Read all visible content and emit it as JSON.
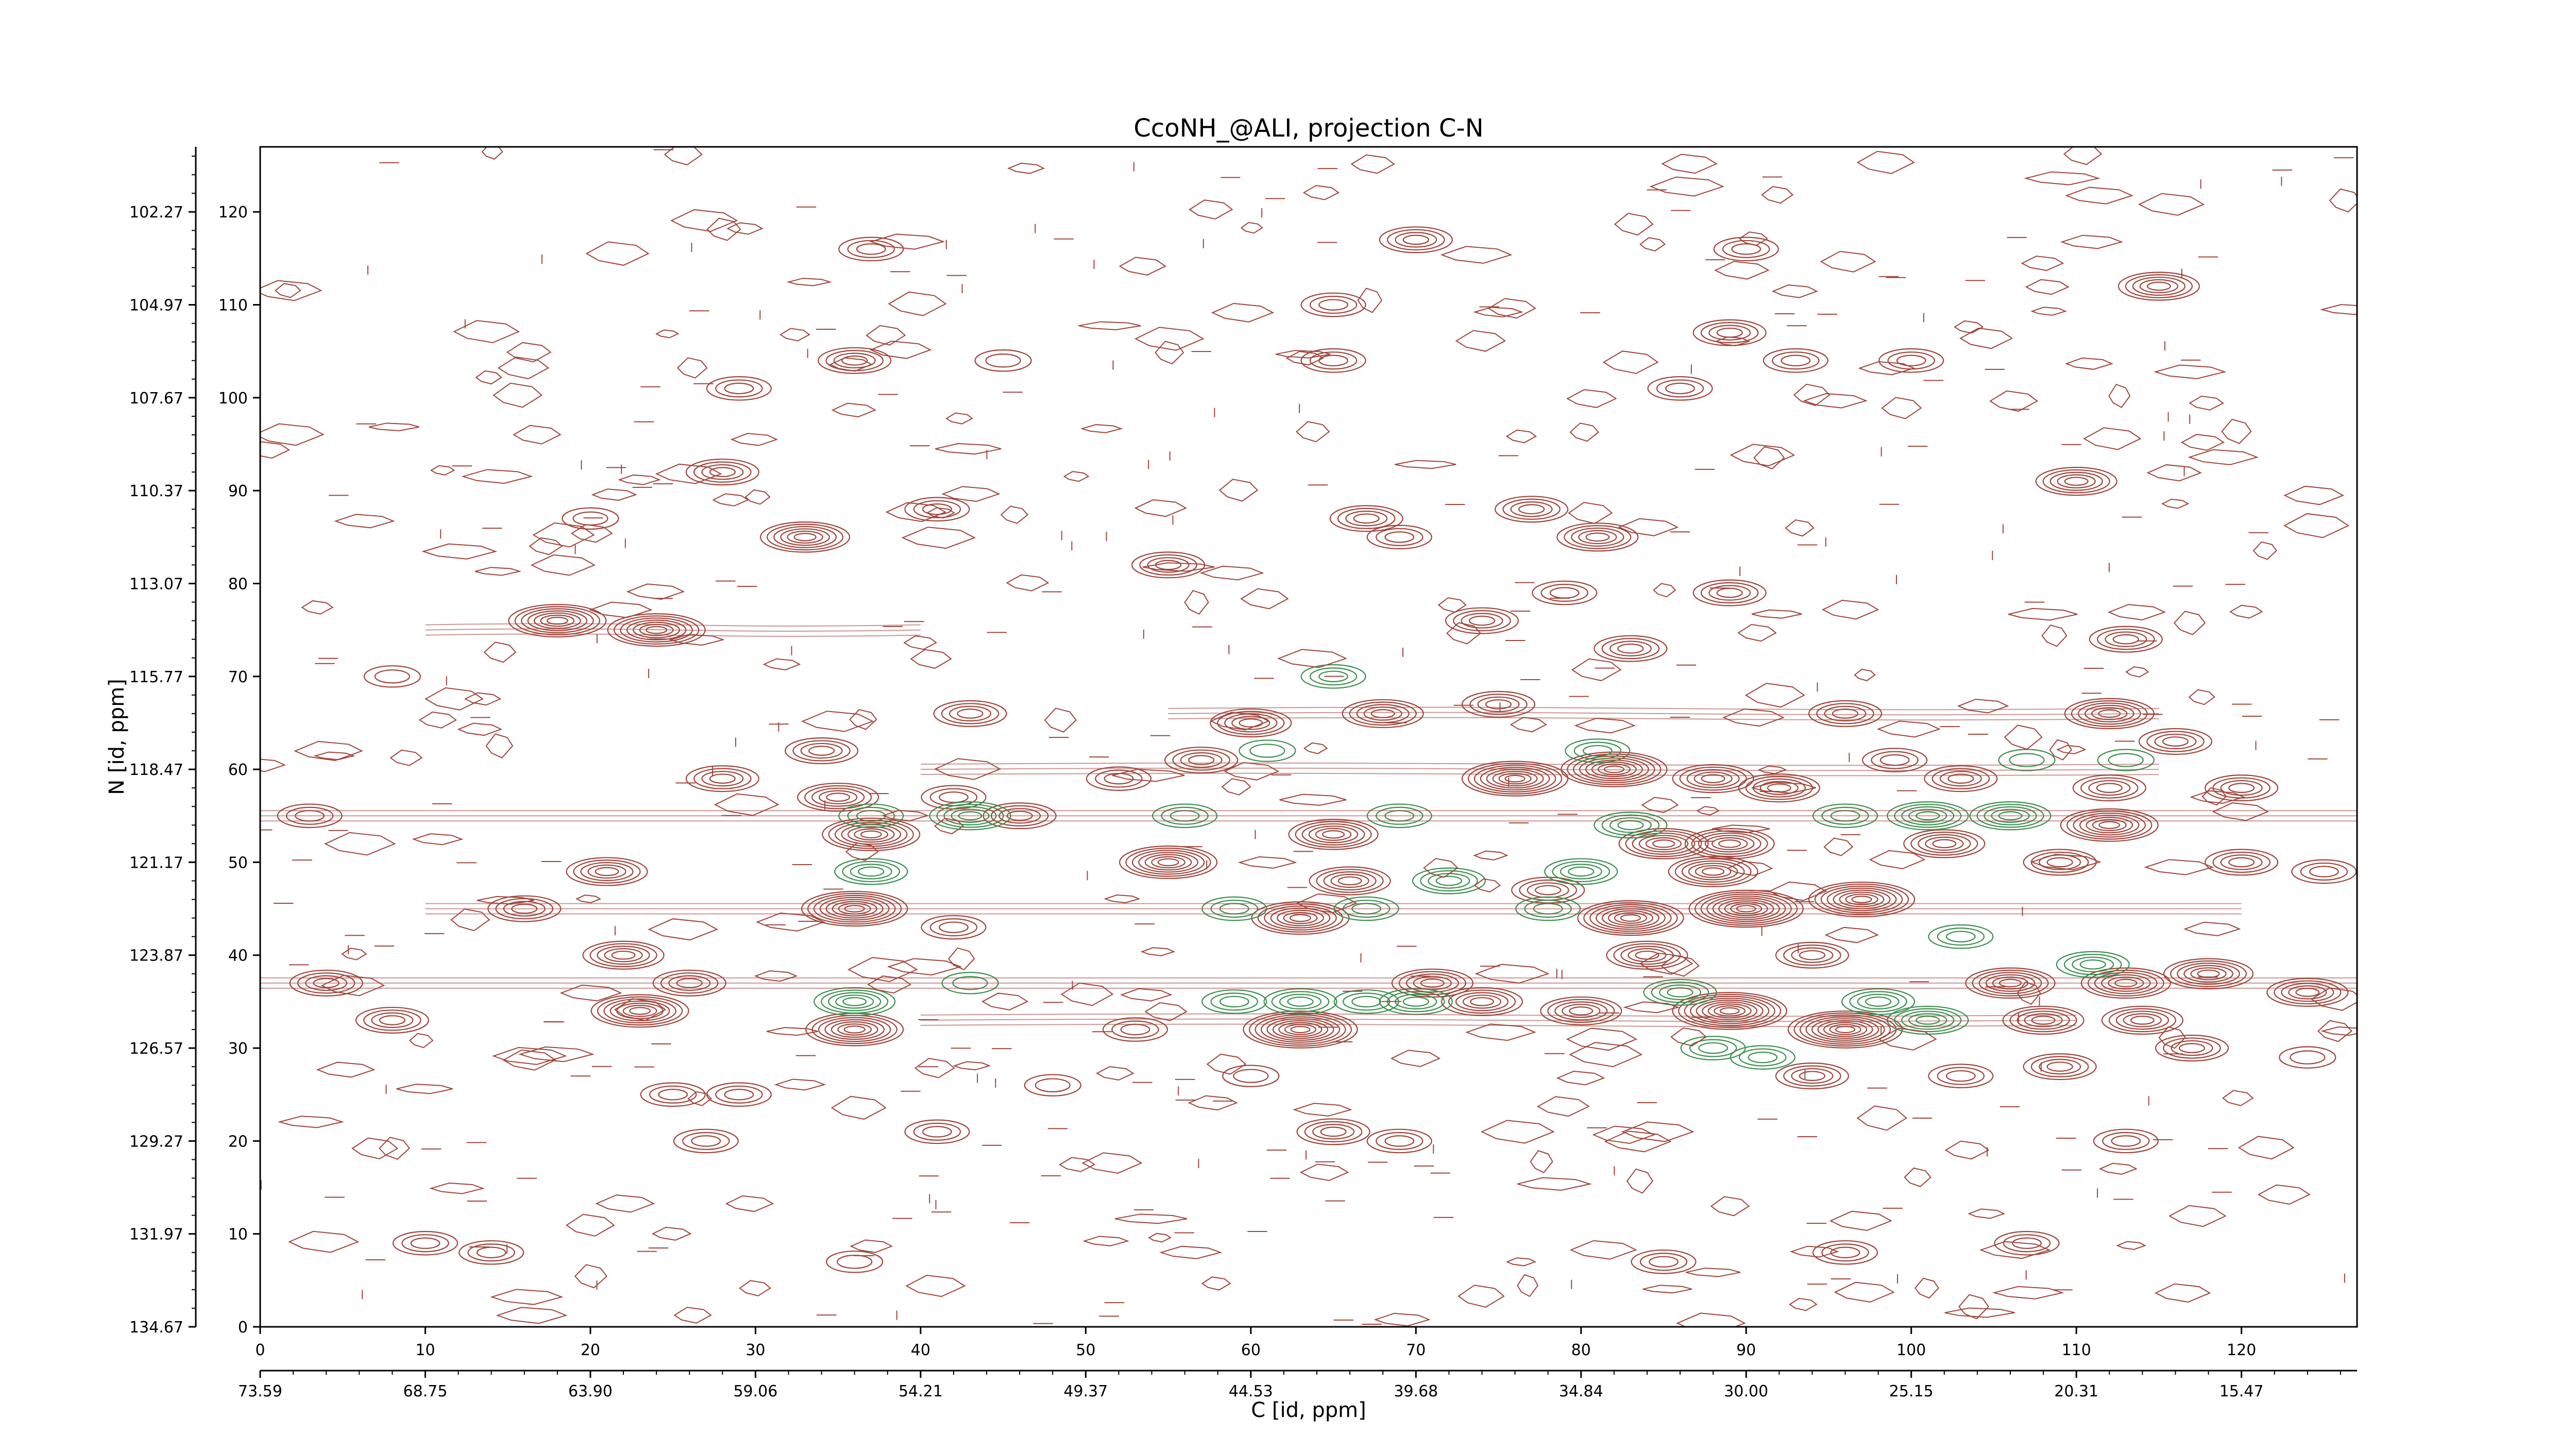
{
  "chart_data": {
    "type": "contour",
    "title": "CcoNH_@ALI, projection C-N",
    "xlabel": "C [id, ppm]",
    "ylabel": "N [id, ppm]",
    "xlim": [
      0,
      127
    ],
    "ylim": [
      0,
      127
    ],
    "x_ticks": [
      "0",
      "10",
      "20",
      "30",
      "40",
      "50",
      "60",
      "70",
      "80",
      "90",
      "100",
      "110",
      "120"
    ],
    "x_ppm_ticks": [
      "73.59",
      "68.75",
      "63.90",
      "59.06",
      "54.21",
      "49.37",
      "44.53",
      "39.68",
      "34.84",
      "30.00",
      "25.15",
      "20.31",
      "15.47"
    ],
    "y_ticks": [
      "0",
      "10",
      "20",
      "30",
      "40",
      "50",
      "60",
      "70",
      "80",
      "90",
      "100",
      "110",
      "120"
    ],
    "y_ppm_ticks": [
      "134.67",
      "131.97",
      "129.27",
      "126.57",
      "123.87",
      "121.17",
      "118.47",
      "115.77",
      "113.07",
      "110.37",
      "107.67",
      "104.97",
      "102.27"
    ],
    "colors": {
      "positive": "#a0443a",
      "negative": "#3a8f4f"
    },
    "grid": false,
    "positive_peaks": [
      {
        "x": 63,
        "y": 32,
        "i": 9
      },
      {
        "x": 89,
        "y": 34,
        "i": 9
      },
      {
        "x": 96,
        "y": 32,
        "i": 9
      },
      {
        "x": 90,
        "y": 45,
        "i": 9
      },
      {
        "x": 82,
        "y": 60,
        "i": 8
      },
      {
        "x": 36,
        "y": 45,
        "i": 8
      },
      {
        "x": 83,
        "y": 44,
        "i": 8
      },
      {
        "x": 76,
        "y": 59,
        "i": 8
      },
      {
        "x": 36,
        "y": 32,
        "i": 7
      },
      {
        "x": 37,
        "y": 53,
        "i": 7
      },
      {
        "x": 18,
        "y": 76,
        "i": 7
      },
      {
        "x": 24,
        "y": 75,
        "i": 7
      },
      {
        "x": 23,
        "y": 34,
        "i": 7
      },
      {
        "x": 55,
        "y": 50,
        "i": 7
      },
      {
        "x": 63,
        "y": 44,
        "i": 7
      },
      {
        "x": 112,
        "y": 54,
        "i": 7
      },
      {
        "x": 112,
        "y": 66,
        "i": 6
      },
      {
        "x": 110,
        "y": 91,
        "i": 5
      },
      {
        "x": 115,
        "y": 112,
        "i": 5
      },
      {
        "x": 70,
        "y": 117,
        "i": 4
      },
      {
        "x": 89,
        "y": 107,
        "i": 4
      },
      {
        "x": 33,
        "y": 85,
        "i": 6
      },
      {
        "x": 28,
        "y": 92,
        "i": 4
      },
      {
        "x": 36,
        "y": 104,
        "i": 4
      },
      {
        "x": 37,
        "y": 116,
        "i": 3
      },
      {
        "x": 8,
        "y": 33,
        "i": 4
      },
      {
        "x": 4,
        "y": 37,
        "i": 4
      },
      {
        "x": 21,
        "y": 49,
        "i": 5
      },
      {
        "x": 16,
        "y": 45,
        "i": 4
      },
      {
        "x": 22,
        "y": 40,
        "i": 5
      },
      {
        "x": 26,
        "y": 37,
        "i": 4
      },
      {
        "x": 29,
        "y": 25,
        "i": 3
      },
      {
        "x": 25,
        "y": 25,
        "i": 3
      },
      {
        "x": 27,
        "y": 20,
        "i": 3
      },
      {
        "x": 41,
        "y": 21,
        "i": 3
      },
      {
        "x": 65,
        "y": 21,
        "i": 4
      },
      {
        "x": 69,
        "y": 20,
        "i": 3
      },
      {
        "x": 113,
        "y": 20,
        "i": 3
      },
      {
        "x": 107,
        "y": 9,
        "i": 3
      },
      {
        "x": 10,
        "y": 9,
        "i": 3
      },
      {
        "x": 14,
        "y": 8,
        "i": 3
      },
      {
        "x": 36,
        "y": 7,
        "i": 2
      },
      {
        "x": 85,
        "y": 7,
        "i": 3
      },
      {
        "x": 96,
        "y": 8,
        "i": 3
      },
      {
        "x": 28,
        "y": 59,
        "i": 4
      },
      {
        "x": 35,
        "y": 57,
        "i": 5
      },
      {
        "x": 43,
        "y": 66,
        "i": 4
      },
      {
        "x": 65,
        "y": 53,
        "i": 6
      },
      {
        "x": 57,
        "y": 61,
        "i": 4
      },
      {
        "x": 60,
        "y": 65,
        "i": 5
      },
      {
        "x": 68,
        "y": 66,
        "i": 5
      },
      {
        "x": 75,
        "y": 67,
        "i": 4
      },
      {
        "x": 85,
        "y": 52,
        "i": 6
      },
      {
        "x": 89,
        "y": 52,
        "i": 6
      },
      {
        "x": 97,
        "y": 46,
        "i": 8
      },
      {
        "x": 102,
        "y": 52,
        "i": 5
      },
      {
        "x": 106,
        "y": 37,
        "i": 6
      },
      {
        "x": 113,
        "y": 37,
        "i": 6
      },
      {
        "x": 118,
        "y": 38,
        "i": 6
      },
      {
        "x": 124,
        "y": 36,
        "i": 5
      },
      {
        "x": 114,
        "y": 33,
        "i": 5
      },
      {
        "x": 108,
        "y": 33,
        "i": 5
      },
      {
        "x": 80,
        "y": 34,
        "i": 5
      },
      {
        "x": 84,
        "y": 40,
        "i": 5
      },
      {
        "x": 71,
        "y": 37,
        "i": 5
      },
      {
        "x": 74,
        "y": 35,
        "i": 5
      },
      {
        "x": 88,
        "y": 49,
        "i": 6
      },
      {
        "x": 94,
        "y": 40,
        "i": 4
      },
      {
        "x": 66,
        "y": 48,
        "i": 5
      },
      {
        "x": 78,
        "y": 47,
        "i": 4
      },
      {
        "x": 55,
        "y": 82,
        "i": 4
      },
      {
        "x": 67,
        "y": 87,
        "i": 4
      },
      {
        "x": 69,
        "y": 85,
        "i": 3
      },
      {
        "x": 77,
        "y": 88,
        "i": 4
      },
      {
        "x": 81,
        "y": 85,
        "i": 5
      },
      {
        "x": 89,
        "y": 79,
        "i": 4
      },
      {
        "x": 83,
        "y": 73,
        "i": 4
      },
      {
        "x": 79,
        "y": 79,
        "i": 3
      },
      {
        "x": 74,
        "y": 76,
        "i": 4
      },
      {
        "x": 113,
        "y": 74,
        "i": 4
      },
      {
        "x": 116,
        "y": 63,
        "i": 4
      },
      {
        "x": 120,
        "y": 58,
        "i": 4
      },
      {
        "x": 112,
        "y": 58,
        "i": 4
      },
      {
        "x": 103,
        "y": 59,
        "i": 4
      },
      {
        "x": 99,
        "y": 61,
        "i": 3
      },
      {
        "x": 109,
        "y": 50,
        "i": 4
      },
      {
        "x": 120,
        "y": 50,
        "i": 4
      },
      {
        "x": 125,
        "y": 49,
        "i": 3
      },
      {
        "x": 93,
        "y": 104,
        "i": 3
      },
      {
        "x": 100,
        "y": 104,
        "i": 3
      },
      {
        "x": 86,
        "y": 101,
        "i": 3
      },
      {
        "x": 65,
        "y": 110,
        "i": 3
      },
      {
        "x": 65,
        "y": 104,
        "i": 3
      },
      {
        "x": 45,
        "y": 104,
        "i": 2
      },
      {
        "x": 29,
        "y": 101,
        "i": 3
      },
      {
        "x": 90,
        "y": 116,
        "i": 3
      },
      {
        "x": 46,
        "y": 55,
        "i": 4
      },
      {
        "x": 42,
        "y": 57,
        "i": 3
      },
      {
        "x": 34,
        "y": 62,
        "i": 4
      },
      {
        "x": 52,
        "y": 59,
        "i": 3
      },
      {
        "x": 8,
        "y": 70,
        "i": 2
      },
      {
        "x": 3,
        "y": 55,
        "i": 3
      },
      {
        "x": 20,
        "y": 87,
        "i": 2
      },
      {
        "x": 41,
        "y": 88,
        "i": 3
      },
      {
        "x": 96,
        "y": 66,
        "i": 4
      },
      {
        "x": 88,
        "y": 59,
        "i": 5
      },
      {
        "x": 92,
        "y": 58,
        "i": 5
      },
      {
        "x": 94,
        "y": 27,
        "i": 4
      },
      {
        "x": 103,
        "y": 27,
        "i": 3
      },
      {
        "x": 109,
        "y": 28,
        "i": 4
      },
      {
        "x": 117,
        "y": 30,
        "i": 4
      },
      {
        "x": 124,
        "y": 29,
        "i": 2
      },
      {
        "x": 60,
        "y": 27,
        "i": 2
      },
      {
        "x": 48,
        "y": 26,
        "i": 2
      },
      {
        "x": 53,
        "y": 32,
        "i": 3
      },
      {
        "x": 42,
        "y": 43,
        "i": 3
      }
    ],
    "negative_peaks": [
      {
        "x": 36,
        "y": 35,
        "i": 5
      },
      {
        "x": 43,
        "y": 55,
        "i": 5
      },
      {
        "x": 37,
        "y": 49,
        "i": 4
      },
      {
        "x": 37,
        "y": 55,
        "i": 3
      },
      {
        "x": 101,
        "y": 55,
        "i": 5
      },
      {
        "x": 106,
        "y": 55,
        "i": 5
      },
      {
        "x": 96,
        "y": 55,
        "i": 3
      },
      {
        "x": 70,
        "y": 35,
        "i": 4
      },
      {
        "x": 63,
        "y": 35,
        "i": 4
      },
      {
        "x": 59,
        "y": 35,
        "i": 3
      },
      {
        "x": 67,
        "y": 35,
        "i": 3
      },
      {
        "x": 101,
        "y": 33,
        "i": 5
      },
      {
        "x": 98,
        "y": 35,
        "i": 4
      },
      {
        "x": 86,
        "y": 36,
        "i": 4
      },
      {
        "x": 72,
        "y": 48,
        "i": 4
      },
      {
        "x": 80,
        "y": 49,
        "i": 4
      },
      {
        "x": 78,
        "y": 45,
        "i": 3
      },
      {
        "x": 69,
        "y": 55,
        "i": 3
      },
      {
        "x": 56,
        "y": 55,
        "i": 3
      },
      {
        "x": 59,
        "y": 45,
        "i": 3
      },
      {
        "x": 67,
        "y": 45,
        "i": 3
      },
      {
        "x": 81,
        "y": 62,
        "i": 3
      },
      {
        "x": 65,
        "y": 70,
        "i": 3
      },
      {
        "x": 61,
        "y": 62,
        "i": 2
      },
      {
        "x": 111,
        "y": 39,
        "i": 4
      },
      {
        "x": 103,
        "y": 42,
        "i": 3
      },
      {
        "x": 43,
        "y": 37,
        "i": 2
      },
      {
        "x": 107,
        "y": 61,
        "i": 2
      },
      {
        "x": 83,
        "y": 54,
        "i": 4
      },
      {
        "x": 88,
        "y": 30,
        "i": 3
      },
      {
        "x": 113,
        "y": 61,
        "i": 2
      },
      {
        "x": 91,
        "y": 29,
        "i": 3
      }
    ],
    "noise_seed": 7,
    "noise_count": 640
  }
}
